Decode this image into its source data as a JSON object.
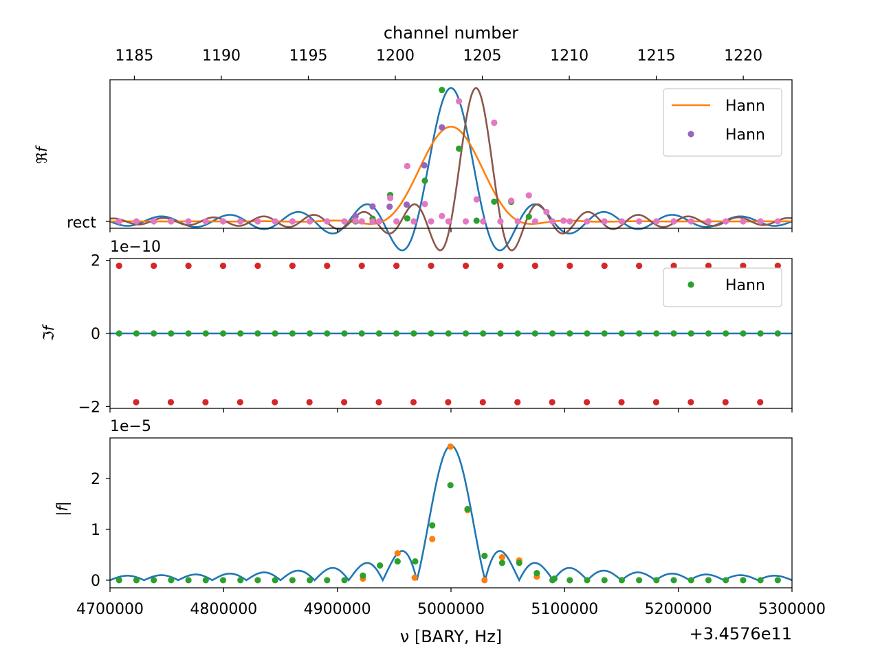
{
  "figure": {
    "top_axis_label": "channel number",
    "x_label": "ν [BARY, Hz]",
    "x_offset_text": "+3.4576e11",
    "colors": {
      "blue": "#1f77b4",
      "orange": "#ff7f0e",
      "green": "#2ca02c",
      "red": "#d62728",
      "purple": "#9467bd",
      "brown": "#8c564b",
      "pink": "#e377c2"
    }
  },
  "chart_data": [
    {
      "type": "line",
      "panel": "real",
      "ylabel": "ℜf",
      "y_tick_labels": [
        "rect"
      ],
      "xlim": [
        4700000,
        5300000
      ],
      "top_axis": {
        "label": "channel number",
        "ticks": [
          1185,
          1190,
          1195,
          1200,
          1205,
          1210,
          1215,
          1220
        ],
        "range": [
          1183.6,
          1222.8
        ]
      },
      "legend": {
        "placement": "upper right",
        "entries": [
          {
            "label": "Hann",
            "style": "line",
            "color": "orange"
          },
          {
            "label": "Hann",
            "style": "marker",
            "color": "purple"
          }
        ]
      },
      "series": [
        {
          "style": "line",
          "color": "blue",
          "kind": "sinc",
          "center": 5000000,
          "peak": 1.0,
          "width": 30000
        },
        {
          "style": "line",
          "color": "orange",
          "kind": "hann",
          "center": 5000000,
          "peak": 0.71,
          "width": 30000
        },
        {
          "style": "line",
          "color": "brown",
          "kind": "sinc",
          "center": 5022000,
          "peak": 1.0,
          "width": 22000
        },
        {
          "style": "points",
          "color": "green",
          "x": [
            4992000,
            5007000,
            5022500,
            4977000,
            4961500,
            4946500,
            4931000,
            4916000,
            5038000,
            5053000,
            5068500
          ],
          "y": [
            0.985,
            0.545,
            0.005,
            0.305,
            0.022,
            0.198,
            0.02,
            0.0,
            0.148,
            0.146,
            0.035
          ]
        },
        {
          "style": "points",
          "color": "purple",
          "x": [
            4992000,
            4976500,
            4961000,
            4946000,
            4931000,
            4916000
          ],
          "y": [
            0.705,
            0.42,
            0.125,
            0.11,
            0.112,
            0.038
          ]
        },
        {
          "style": "points",
          "color": "pink",
          "x": [
            5007000,
            4992000,
            4977000,
            4961500,
            4946500,
            4931000,
            4916000,
            5022500,
            5038000,
            5053000,
            5068500,
            5084000,
            5099000
          ],
          "y": [
            0.9,
            0.04,
            0.13,
            0.415,
            0.175,
            0.0,
            0.005,
            0.165,
            0.74,
            0.155,
            0.195,
            0.07,
            0.005
          ],
          "background_x0": 4708000,
          "background_x1": 5290000
        }
      ]
    },
    {
      "type": "scatter",
      "panel": "imag",
      "ylabel": "ℑf",
      "y_scale_text": "1e−10",
      "ylim": [
        -2.05,
        2.05
      ],
      "y_ticks": [
        -2,
        0,
        2
      ],
      "legend": {
        "placement": "upper right",
        "entries": [
          {
            "label": "Hann",
            "style": "marker",
            "color": "green"
          }
        ]
      },
      "series": [
        {
          "style": "line",
          "color": "blue",
          "kind": "constant",
          "value": 0
        },
        {
          "style": "points",
          "color": "green",
          "value": 0,
          "x0": 4708000,
          "step": 15250,
          "count": 39
        },
        {
          "style": "points",
          "color": "red",
          "value": 1.85,
          "x0": 4708000,
          "step": 30500,
          "count": 20
        },
        {
          "style": "points",
          "color": "red",
          "value": -1.88,
          "x0": 4723000,
          "step": 30500,
          "count": 19
        }
      ]
    },
    {
      "type": "line",
      "panel": "abs",
      "ylabel": "|f|",
      "y_scale_text": "1e−5",
      "ylim": [
        -0.15,
        2.8
      ],
      "y_ticks": [
        0,
        1,
        2
      ],
      "xlim": [
        4700000,
        5300000
      ],
      "x_ticks": [
        4700000,
        4800000,
        4900000,
        5000000,
        5100000,
        5200000,
        5300000
      ],
      "x_tick_labels": [
        "4700000",
        "4800000",
        "4900000",
        "5000000",
        "5100000",
        "5200000",
        "5300000"
      ],
      "series": [
        {
          "style": "line",
          "color": "blue",
          "kind": "abs_sinc",
          "center": 5000000,
          "peak": 2.65,
          "width": 30000
        },
        {
          "style": "points",
          "color": "orange",
          "x": [
            4999500,
            5014500,
            4983500,
            4953000,
            4968000,
            4922500,
            5029500,
            5045000,
            5060000,
            5075500
          ],
          "y": [
            2.63,
            1.38,
            0.81,
            0.53,
            0.05,
            0.03,
            0.0,
            0.45,
            0.39,
            0.07
          ]
        },
        {
          "style": "points",
          "color": "green",
          "x": [
            4999500,
            5014500,
            4983500,
            4953000,
            4968500,
            4937500,
            4922500,
            5029500,
            5045000,
            5060000,
            5075500,
            5091000
          ],
          "y": [
            1.87,
            1.4,
            1.08,
            0.37,
            0.37,
            0.29,
            0.09,
            0.48,
            0.34,
            0.34,
            0.14,
            0.03
          ]
        }
      ]
    }
  ]
}
